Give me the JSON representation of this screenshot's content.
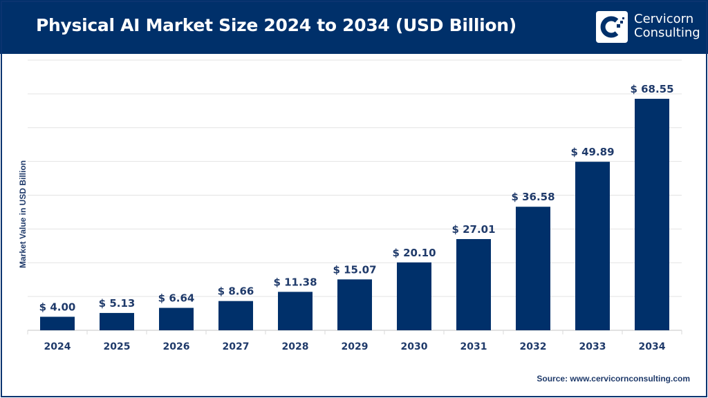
{
  "header": {
    "title": "Physical AI Market Size 2024 to 2034 (USD Billion)",
    "logo_line1": "Cervicorn",
    "logo_line2": "Consulting"
  },
  "source": "Source: www.cervicornconsulting.com",
  "colors": {
    "bar": "#00306a",
    "header": "#00306a",
    "text": "#1f3a6a",
    "grid": "#e3e3e3"
  },
  "chart_data": {
    "type": "bar",
    "title": "Physical AI Market Size 2024 to 2034 (USD Billion)",
    "xlabel": "",
    "ylabel": "Market Value in USD Billion",
    "categories": [
      "2024",
      "2025",
      "2026",
      "2027",
      "2028",
      "2029",
      "2030",
      "2031",
      "2032",
      "2033",
      "2034"
    ],
    "values": [
      4.0,
      5.13,
      6.64,
      8.66,
      11.38,
      15.07,
      20.1,
      27.01,
      36.58,
      49.89,
      68.55
    ],
    "data_labels": [
      "$ 4.00",
      "$ 5.13",
      "$ 6.64",
      "$ 8.66",
      "$ 11.38",
      "$ 15.07",
      "$ 20.10",
      "$ 27.01",
      "$ 36.58",
      "$ 49.89",
      "$ 68.55"
    ],
    "ylim": [
      0,
      80
    ],
    "grid": true,
    "legend": "none"
  }
}
